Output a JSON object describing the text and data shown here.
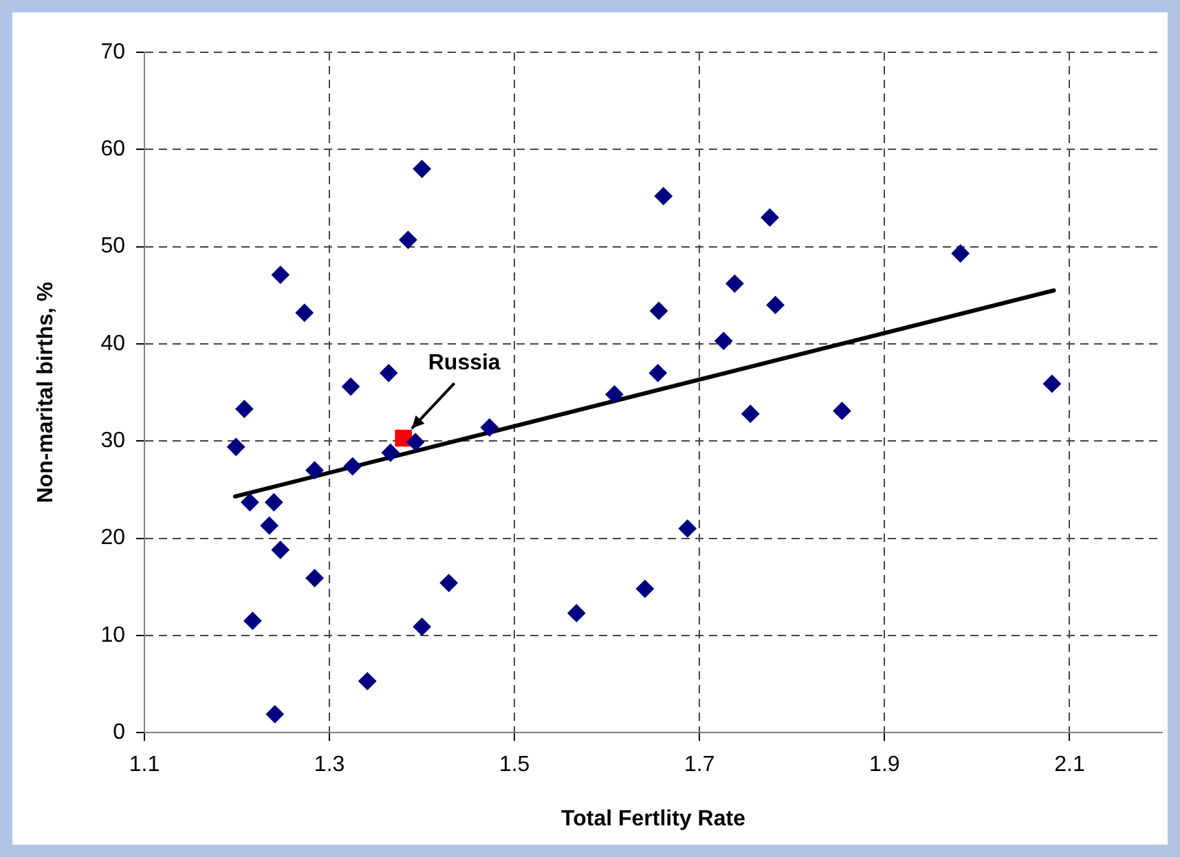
{
  "chart_data": {
    "type": "scatter",
    "xlabel": "Total Fertlity Rate",
    "ylabel": "Non-marital births, %",
    "xlim": [
      1.1,
      2.2
    ],
    "xticks": [
      1.1,
      1.3,
      1.5,
      1.7,
      1.9,
      2.1
    ],
    "ylim": [
      0,
      70
    ],
    "yticks": [
      0,
      10,
      20,
      30,
      40,
      50,
      60,
      70
    ],
    "grid": true,
    "legend": false,
    "marker": "diamond",
    "series": [
      {
        "color": "#000080",
        "x": [
          1.199,
          1.284,
          1.325,
          1.366,
          1.393,
          1.473,
          1.214,
          1.24,
          1.235,
          1.247,
          1.284,
          1.429,
          1.217,
          1.4,
          1.341,
          1.241,
          1.4,
          1.385,
          1.247,
          1.273,
          1.364,
          1.323,
          1.208,
          1.661,
          1.776,
          1.738,
          1.656,
          1.782,
          1.726,
          1.655,
          1.608,
          1.755,
          1.854,
          1.687,
          1.641,
          1.567,
          1.982,
          2.081
        ],
        "values": [
          29.4,
          27.0,
          27.4,
          28.8,
          29.9,
          31.4,
          23.7,
          23.7,
          21.3,
          18.8,
          15.9,
          15.4,
          11.5,
          10.9,
          5.3,
          1.9,
          58.0,
          50.7,
          47.1,
          43.2,
          37.0,
          35.6,
          33.3,
          55.2,
          53.0,
          46.2,
          43.4,
          44.0,
          40.3,
          37.0,
          34.8,
          32.8,
          33.1,
          21.0,
          14.8,
          12.3,
          49.3,
          35.9
        ]
      },
      {
        "name": "Russia",
        "color": "#ff0000",
        "marker": "square",
        "x": [
          1.38
        ],
        "values": [
          30.3
        ]
      },
      {
        "type": "line",
        "color": "#000000",
        "marker": "none",
        "x": [
          1.198,
          2.083
        ],
        "values": [
          24.3,
          45.5
        ]
      }
    ]
  }
}
